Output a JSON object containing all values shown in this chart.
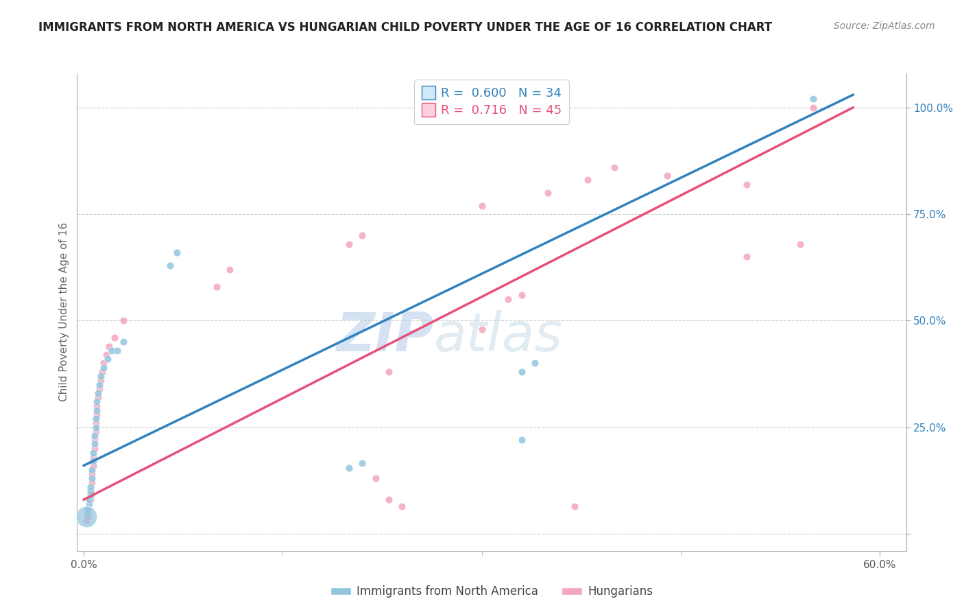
{
  "title": "IMMIGRANTS FROM NORTH AMERICA VS HUNGARIAN CHILD POVERTY UNDER THE AGE OF 16 CORRELATION CHART",
  "source": "Source: ZipAtlas.com",
  "ylabel": "Child Poverty Under the Age of 16",
  "xlim": [
    0.0,
    0.62
  ],
  "ylim": [
    -0.05,
    1.08
  ],
  "ytick_labels": [
    "",
    "25.0%",
    "50.0%",
    "75.0%",
    "100.0%"
  ],
  "ytick_values": [
    0.0,
    0.25,
    0.5,
    0.75,
    1.0
  ],
  "xtick_labels": [
    "0.0%",
    "60.0%"
  ],
  "xtick_values": [
    0.0,
    0.6
  ],
  "legend1_r": "0.600",
  "legend1_n": "34",
  "legend2_r": "0.716",
  "legend2_n": "45",
  "color_blue": "#92c5de",
  "color_pink": "#f4a6be",
  "color_blue_line": "#3182bd",
  "color_pink_line": "#e8507a",
  "watermark_zip": "ZIP",
  "watermark_atlas": "atlas",
  "blue_scatter": [
    [
      0.002,
      0.04
    ],
    [
      0.003,
      0.05
    ],
    [
      0.003,
      0.06
    ],
    [
      0.004,
      0.07
    ],
    [
      0.004,
      0.08
    ],
    [
      0.005,
      0.09
    ],
    [
      0.005,
      0.1
    ],
    [
      0.005,
      0.11
    ],
    [
      0.006,
      0.13
    ],
    [
      0.006,
      0.15
    ],
    [
      0.007,
      0.17
    ],
    [
      0.007,
      0.19
    ],
    [
      0.008,
      0.21
    ],
    [
      0.008,
      0.23
    ],
    [
      0.009,
      0.25
    ],
    [
      0.009,
      0.27
    ],
    [
      0.01,
      0.29
    ],
    [
      0.01,
      0.31
    ],
    [
      0.011,
      0.33
    ],
    [
      0.012,
      0.35
    ],
    [
      0.013,
      0.37
    ],
    [
      0.015,
      0.39
    ],
    [
      0.018,
      0.41
    ],
    [
      0.021,
      0.43
    ],
    [
      0.025,
      0.43
    ],
    [
      0.03,
      0.45
    ],
    [
      0.065,
      0.63
    ],
    [
      0.07,
      0.66
    ],
    [
      0.2,
      0.155
    ],
    [
      0.21,
      0.165
    ],
    [
      0.33,
      0.22
    ],
    [
      0.33,
      0.38
    ],
    [
      0.34,
      0.4
    ],
    [
      0.55,
      1.02
    ]
  ],
  "blue_scatter_sizes": [
    500,
    30,
    30,
    30,
    30,
    30,
    30,
    30,
    30,
    30,
    30,
    30,
    30,
    30,
    30,
    30,
    30,
    30,
    30,
    30,
    30,
    30,
    30,
    30,
    30,
    30,
    30,
    30,
    30,
    30,
    30,
    30,
    30,
    30
  ],
  "pink_scatter": [
    [
      0.002,
      0.03
    ],
    [
      0.003,
      0.04
    ],
    [
      0.004,
      0.06
    ],
    [
      0.005,
      0.08
    ],
    [
      0.005,
      0.1
    ],
    [
      0.006,
      0.12
    ],
    [
      0.006,
      0.14
    ],
    [
      0.007,
      0.16
    ],
    [
      0.007,
      0.18
    ],
    [
      0.008,
      0.2
    ],
    [
      0.008,
      0.22
    ],
    [
      0.009,
      0.24
    ],
    [
      0.009,
      0.26
    ],
    [
      0.01,
      0.28
    ],
    [
      0.01,
      0.3
    ],
    [
      0.011,
      0.32
    ],
    [
      0.012,
      0.34
    ],
    [
      0.013,
      0.36
    ],
    [
      0.014,
      0.38
    ],
    [
      0.015,
      0.4
    ],
    [
      0.017,
      0.42
    ],
    [
      0.019,
      0.44
    ],
    [
      0.023,
      0.46
    ],
    [
      0.03,
      0.5
    ],
    [
      0.1,
      0.58
    ],
    [
      0.11,
      0.62
    ],
    [
      0.2,
      0.68
    ],
    [
      0.21,
      0.7
    ],
    [
      0.3,
      0.77
    ],
    [
      0.35,
      0.8
    ],
    [
      0.38,
      0.83
    ],
    [
      0.4,
      0.86
    ],
    [
      0.44,
      0.84
    ],
    [
      0.5,
      0.82
    ],
    [
      0.22,
      0.13
    ],
    [
      0.23,
      0.08
    ],
    [
      0.24,
      0.065
    ],
    [
      0.37,
      0.065
    ],
    [
      0.23,
      0.38
    ],
    [
      0.3,
      0.48
    ],
    [
      0.32,
      0.55
    ],
    [
      0.33,
      0.56
    ],
    [
      0.5,
      0.65
    ],
    [
      0.54,
      0.68
    ],
    [
      0.55,
      1.0
    ]
  ],
  "blue_line_x": [
    0.0,
    0.58
  ],
  "blue_line_y": [
    0.16,
    1.03
  ],
  "pink_line_x": [
    0.0,
    0.58
  ],
  "pink_line_y": [
    0.08,
    1.0
  ]
}
